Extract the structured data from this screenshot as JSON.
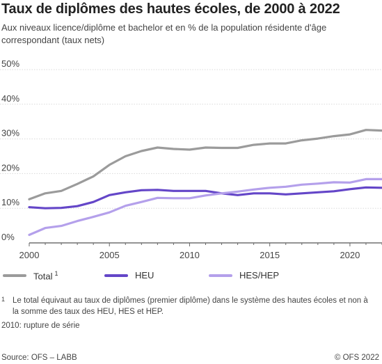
{
  "title": "Taux de diplômes des hautes écoles, de 2000 à 2022",
  "subtitle": "Aux niveaux licence/diplôme et bachelor et en % de la population résidente d'âge correspondant (taux nets)",
  "chart_data": {
    "type": "line",
    "title": "Taux de diplômes des hautes écoles, de 2000 à 2022",
    "xlabel": "",
    "ylabel": "",
    "x": [
      2000,
      2001,
      2002,
      2003,
      2004,
      2005,
      2006,
      2007,
      2008,
      2009,
      2010,
      2011,
      2012,
      2013,
      2014,
      2015,
      2016,
      2017,
      2018,
      2019,
      2020,
      2021,
      2022
    ],
    "xlim": [
      2000,
      2022
    ],
    "ylim": [
      0,
      50
    ],
    "x_ticks": [
      2000,
      2005,
      2010,
      2015,
      2020
    ],
    "y_ticks": [
      0,
      10,
      20,
      30,
      40,
      50
    ],
    "y_tick_labels": [
      "0%",
      "10%",
      "20%",
      "30%",
      "40%",
      "50%"
    ],
    "grid": "horizontal",
    "legend_position": "bottom",
    "series": [
      {
        "name": "Total",
        "color": "#9b9b9b",
        "values": [
          12.6,
          14.3,
          15.0,
          17.0,
          19.2,
          22.5,
          25.0,
          26.5,
          27.5,
          27.1,
          26.9,
          27.5,
          27.4,
          27.4,
          28.3,
          28.7,
          28.7,
          29.6,
          30.1,
          30.8,
          31.3,
          32.6,
          32.4
        ]
      },
      {
        "name": "HEU",
        "color": "#6446c8",
        "values": [
          10.3,
          10.0,
          10.1,
          10.6,
          11.8,
          13.8,
          14.6,
          15.2,
          15.3,
          15.0,
          15.0,
          15.0,
          14.3,
          13.8,
          14.3,
          14.3,
          14.0,
          14.3,
          14.6,
          14.9,
          15.5,
          16.0,
          15.9
        ]
      },
      {
        "name": "HES/HEP",
        "color": "#b4a0eb",
        "values": [
          2.3,
          4.3,
          4.9,
          6.3,
          7.5,
          8.8,
          10.7,
          11.8,
          13.0,
          12.9,
          12.9,
          13.7,
          14.3,
          14.8,
          15.4,
          15.9,
          16.2,
          16.8,
          17.1,
          17.5,
          17.4,
          18.4,
          18.4
        ]
      }
    ]
  },
  "legend": {
    "total_label": "Total",
    "total_sup": "1",
    "heu_label": "HEU",
    "hes_label": "HES/HEP"
  },
  "footnote": {
    "mark": "1",
    "text": "Le total équivaut au taux de diplômes (premier diplôme) dans le système des hautes écoles et non à la somme des taux des HEU, HES et HEP."
  },
  "note": "2010: rupture de série",
  "source": "Source: OFS – LABB",
  "copyright": "© OFS 2022"
}
